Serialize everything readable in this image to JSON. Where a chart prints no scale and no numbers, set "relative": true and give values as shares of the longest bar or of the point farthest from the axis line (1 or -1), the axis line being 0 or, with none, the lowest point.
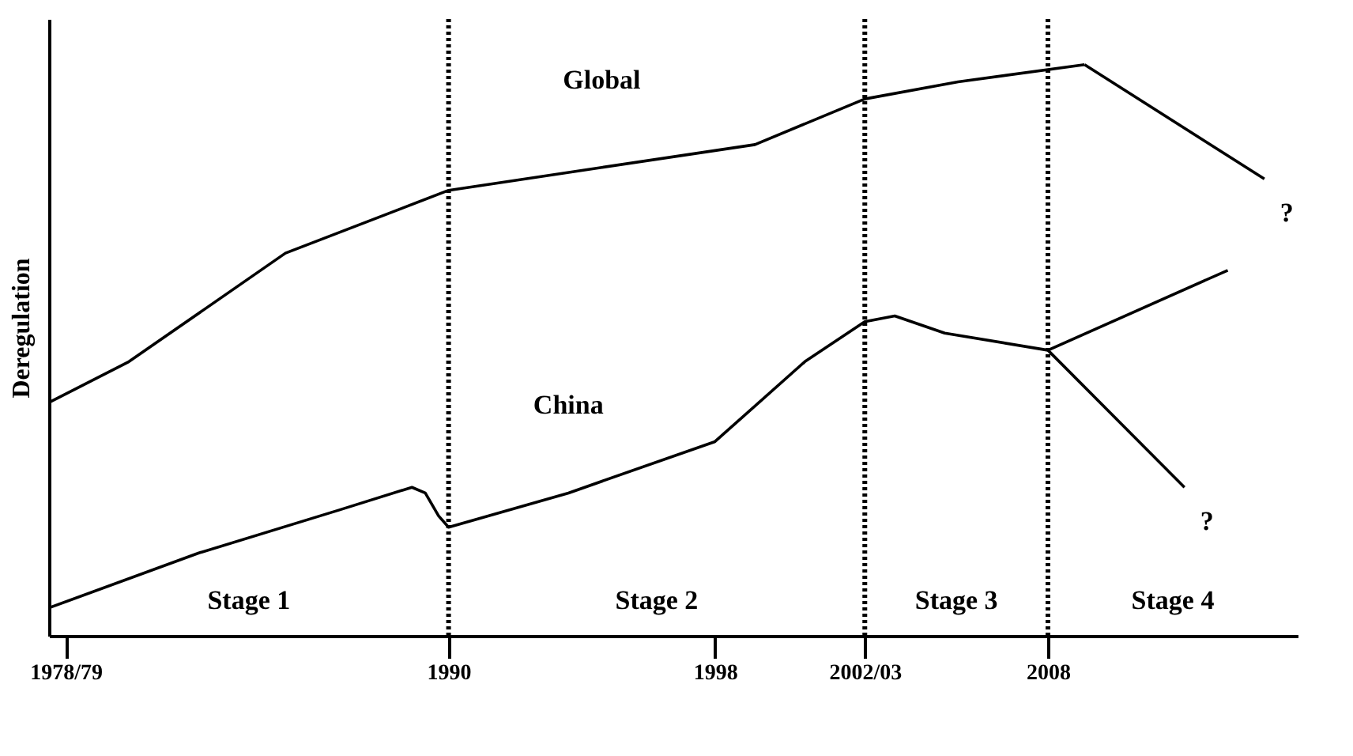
{
  "chart_data": {
    "type": "line",
    "relative": true,
    "ylabel": "Deregulation",
    "xlim": [
      1978,
      2015.5
    ],
    "xticks": [
      {
        "value": 1978.5,
        "label": "1978/79"
      },
      1990,
      1998,
      {
        "value": 2002.5,
        "label": "2002/03"
      },
      2008
    ],
    "grid": false,
    "marker": "none",
    "line_style": "solid",
    "series": [
      {
        "name": "Global",
        "color": "#000000",
        "x": [
          1978.05,
          1980.4,
          1985.1,
          1990,
          1994.6,
          1999.2,
          2002.5,
          2005.3,
          2009.1
        ],
        "values": [
          0.41,
          0.48,
          0.67,
          0.78,
          0.82,
          0.86,
          0.94,
          0.97,
          1
        ]
      },
      {
        "name": "China",
        "color": "#000000",
        "x": [
          1978.05,
          1982.5,
          1986.7,
          1988.9,
          1989.3,
          1989.7,
          1990,
          1993.6,
          1998,
          2000.7,
          2002.5,
          2003.4,
          2004.9,
          2008
        ],
        "values": [
          0.05,
          0.145,
          0.22,
          0.26,
          0.25,
          0.21,
          0.19,
          0.25,
          0.34,
          0.48,
          0.55,
          0.56,
          0.53,
          0.5
        ]
      },
      {
        "color": "#000000",
        "x": [
          2009.1,
          2014.5
        ],
        "values": [
          1,
          0.8
        ]
      },
      {
        "color": "#000000",
        "x": [
          2008,
          2013.4
        ],
        "values": [
          0.5,
          0.64
        ]
      },
      {
        "color": "#000000",
        "x": [
          2008,
          2012.1
        ],
        "values": [
          0.5,
          0.26
        ]
      }
    ],
    "ref_lines": [
      {
        "axis": "x",
        "value": 1990,
        "line_style": "dotted"
      },
      {
        "axis": "x",
        "value": 2002.5,
        "line_style": "dotted"
      },
      {
        "axis": "x",
        "value": 2008,
        "line_style": "dotted"
      }
    ],
    "annotations": [
      "Stage 1",
      "Stage 2",
      "Stage 3",
      "Stage 4",
      {
        "text": "?",
        "x": 2014.5,
        "y": 0.8
      },
      {
        "text": "?",
        "x": 2012.1,
        "y": 0.26
      }
    ]
  }
}
